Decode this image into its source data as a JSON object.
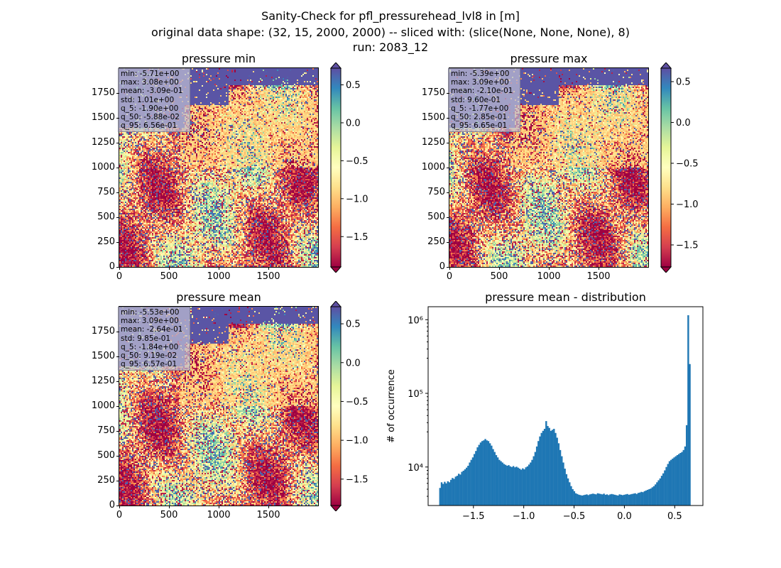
{
  "suptitle": {
    "line1": "Sanity-Check for pfl_pressurehead_lvl8 in [m]",
    "line2": "original data shape: (32, 15, 2000, 2000) -- sliced with: (slice(None, None, None), 8)",
    "line3": "run: 2083_12"
  },
  "colors": {
    "colormap": "Spectral",
    "hist_bar": "#1f77b4",
    "stats_box_bg": "#bebed2"
  },
  "chart_data": [
    {
      "type": "heatmap",
      "title": "pressure min",
      "xlim": [
        0,
        2000
      ],
      "ylim": [
        0,
        2000
      ],
      "xticks": [
        "0",
        "500",
        "1000",
        "1500"
      ],
      "yticks": [
        "0",
        "250",
        "500",
        "750",
        "1000",
        "1250",
        "1500",
        "1750"
      ],
      "colorbar": {
        "range": [
          -1.9,
          0.72
        ],
        "ticks": [
          "0.5",
          "0.0",
          "−0.5",
          "−1.0",
          "−1.5"
        ],
        "extend": "both"
      },
      "stats": [
        "min: -5.71e+00",
        "max: 3.08e+00",
        "mean: -3.09e-01",
        "std: 1.01e+00",
        "q_5: -1.90e+00",
        "q_50: -5.88e-02",
        "q_95: 6.56e-01"
      ]
    },
    {
      "type": "heatmap",
      "title": "pressure max",
      "xlim": [
        0,
        2000
      ],
      "ylim": [
        0,
        2000
      ],
      "xticks": [
        "0",
        "500",
        "1000",
        "1500"
      ],
      "yticks": [
        "0",
        "250",
        "500",
        "750",
        "1000",
        "1250",
        "1500",
        "1750"
      ],
      "colorbar": {
        "range": [
          -1.77,
          0.665
        ],
        "ticks": [
          "0.5",
          "0.0",
          "−0.5",
          "−1.0",
          "−1.5"
        ],
        "extend": "both"
      },
      "stats": [
        "min: -5.39e+00",
        "max: 3.09e+00",
        "mean: -2.10e-01",
        "std: 9.60e-01",
        "q_5: -1.77e+00",
        "q_50: 2.85e-01",
        "q_95: 6.65e-01"
      ]
    },
    {
      "type": "heatmap",
      "title": "pressure mean",
      "xlim": [
        0,
        2000
      ],
      "ylim": [
        0,
        2000
      ],
      "xticks": [
        "0",
        "500",
        "1000",
        "1500"
      ],
      "yticks": [
        "0",
        "250",
        "500",
        "750",
        "1000",
        "1250",
        "1500",
        "1750"
      ],
      "colorbar": {
        "range": [
          -1.84,
          0.72
        ],
        "ticks": [
          "0.5",
          "0.0",
          "−0.5",
          "−1.0",
          "−1.5"
        ],
        "extend": "both"
      },
      "stats": [
        "min: -5.53e+00",
        "max: 3.09e+00",
        "mean: -2.64e-01",
        "std: 9.85e-01",
        "q_5: -1.84e+00",
        "q_50: 9.19e-02",
        "q_95: 6.57e-01"
      ]
    },
    {
      "type": "bar",
      "title": "pressure mean - distribution",
      "xlabel": "",
      "ylabel": "# of occurrence",
      "yscale": "log",
      "xlim": [
        -1.95,
        0.78
      ],
      "ylim": [
        3000,
        1500000
      ],
      "xticks": [
        -1.5,
        -1.0,
        -0.5,
        0.0,
        0.5
      ],
      "xtick_labels": [
        "−1.5",
        "−1.0",
        "−0.5",
        "0.0",
        "0.5"
      ],
      "yticks": [
        10000,
        100000,
        1000000
      ],
      "ytick_labels": [
        "10⁴",
        "10⁵",
        "10⁶"
      ],
      "bin_range": [
        -1.84,
        0.657
      ],
      "values": [
        5200,
        6200,
        5900,
        6300,
        6000,
        6400,
        6200,
        6700,
        7100,
        6900,
        7400,
        7600,
        8100,
        7900,
        8600,
        8900,
        9300,
        9800,
        10400,
        11500,
        12500,
        13500,
        15000,
        16500,
        18500,
        20000,
        21500,
        22500,
        23000,
        24000,
        23000,
        22500,
        21000,
        19500,
        17500,
        16000,
        14500,
        13500,
        12500,
        12000,
        11500,
        11000,
        10700,
        10400,
        10600,
        10200,
        10000,
        10300,
        9900,
        10100,
        9800,
        9500,
        9200,
        9600,
        9300,
        9900,
        10200,
        10800,
        11500,
        12500,
        14000,
        16000,
        19000,
        22500,
        26000,
        29000,
        31000,
        33000,
        42000,
        36000,
        34000,
        31000,
        32000,
        33000,
        29000,
        25000,
        21000,
        17000,
        14000,
        11500,
        9500,
        8000,
        7000,
        6200,
        5500,
        5000,
        4700,
        4400,
        4300,
        4200,
        4150,
        4100,
        4150,
        4200,
        4250,
        4150,
        4250,
        4300,
        4350,
        4300,
        4250,
        4400,
        4350,
        4300,
        4250,
        4350,
        4200,
        4250,
        4150,
        4250,
        4300,
        4250,
        4200,
        4150,
        4100,
        4250,
        4200,
        4150,
        4200,
        4250,
        4300,
        4200,
        4250,
        4300,
        4350,
        4400,
        4300,
        4450,
        4500,
        4600,
        4550,
        4700,
        4800,
        4900,
        5000,
        5100,
        5300,
        5500,
        5800,
        6200,
        6600,
        7000,
        7600,
        8200,
        9000,
        10000,
        11000,
        12000,
        12500,
        13000,
        13500,
        14000,
        14500,
        15000,
        15500,
        16000,
        17000,
        19000,
        37000,
        1150000,
        250000
      ]
    }
  ]
}
